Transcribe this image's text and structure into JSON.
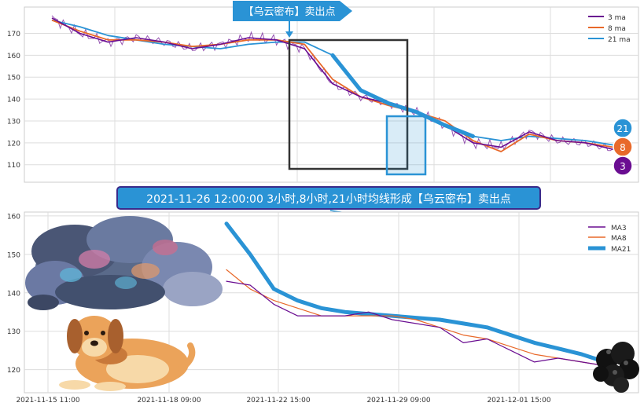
{
  "colors": {
    "ma3": "#6a0d91",
    "ma8": "#e8692a",
    "ma21": "#2a93d5",
    "price": "#6a0d91",
    "badge_bg": "#2a93d5",
    "banner_bg": "#2a93d5",
    "rect_black": "#333333",
    "rect_blue": "#2a93d5",
    "grid": "#dddddd"
  },
  "top_badge": {
    "label": "【乌云密布】卖出点"
  },
  "banner": {
    "label": "2021-11-26 12:00:00 3小时,8小时,21小时均线形成【乌云密布】卖出点"
  },
  "marker_badges": [
    {
      "label": "21",
      "color": "#2a93d5"
    },
    {
      "label": "8",
      "color": "#e8692a"
    },
    {
      "label": "3",
      "color": "#6a0d91"
    }
  ],
  "illustrations": [
    {
      "name": "storm-cloud-illustration"
    },
    {
      "name": "dog-illustration"
    },
    {
      "name": "dark-cloud-illustration"
    }
  ],
  "chart_data": [
    {
      "type": "line",
      "ylim": [
        102,
        182
      ],
      "yticks": [
        110,
        120,
        130,
        140,
        150,
        160,
        170
      ],
      "legend": {
        "placement": "top-right",
        "entries": [
          "3 ma",
          "8 ma",
          "21 ma"
        ]
      },
      "grid": true,
      "x": [
        0,
        5,
        10,
        15,
        20,
        25,
        30,
        35,
        40,
        45,
        50,
        55,
        60,
        65,
        70,
        75,
        80,
        85,
        90,
        95,
        100
      ],
      "series": [
        {
          "name": "3 ma",
          "values": [
            177,
            170,
            166,
            168,
            166,
            163,
            165,
            168,
            167,
            163,
            147,
            141,
            138,
            134,
            128,
            120,
            118,
            125,
            121,
            120,
            117
          ]
        },
        {
          "name": "8 ma",
          "values": [
            176,
            171,
            167,
            167,
            166,
            164,
            165,
            167,
            167,
            165,
            149,
            141,
            137,
            134,
            130,
            121,
            116,
            124,
            121,
            120,
            118
          ]
        },
        {
          "name": "21 ma",
          "values": [
            176,
            173,
            169,
            167,
            165,
            164,
            163,
            165,
            166,
            166,
            160,
            144,
            138,
            134,
            128,
            123,
            121,
            123,
            122,
            121,
            119
          ]
        }
      ]
    },
    {
      "type": "line",
      "ylim": [
        114,
        161
      ],
      "yticks": [
        120,
        130,
        140,
        150,
        160
      ],
      "xticks": [
        "2021-11-15 11:00",
        "2021-11-18 09:00",
        "2021-11-22 15:00",
        "2021-11-29 09:00",
        "2021-12-01 15:00"
      ],
      "legend": {
        "placement": "top-right",
        "entries": [
          "MA3",
          "MA8",
          "MA21"
        ]
      },
      "grid": true,
      "x": [
        0,
        1,
        2,
        3,
        4,
        5,
        6,
        7,
        8,
        9,
        10,
        11,
        12,
        13,
        14,
        15,
        16
      ],
      "series": [
        {
          "name": "MA3",
          "values": [
            143,
            142,
            137,
            134,
            134,
            134,
            135,
            133,
            132,
            131,
            127,
            128,
            125,
            122,
            123,
            122,
            121
          ]
        },
        {
          "name": "MA8",
          "values": [
            146,
            141,
            138,
            136,
            134,
            134,
            134,
            134,
            133,
            131,
            129,
            128,
            126,
            124,
            123,
            122,
            121
          ]
        },
        {
          "name": "MA21",
          "values": [
            158,
            150,
            141,
            138,
            136,
            135,
            134.5,
            134,
            133.5,
            133,
            132,
            131,
            129,
            127,
            125.5,
            124,
            122
          ]
        }
      ]
    }
  ]
}
